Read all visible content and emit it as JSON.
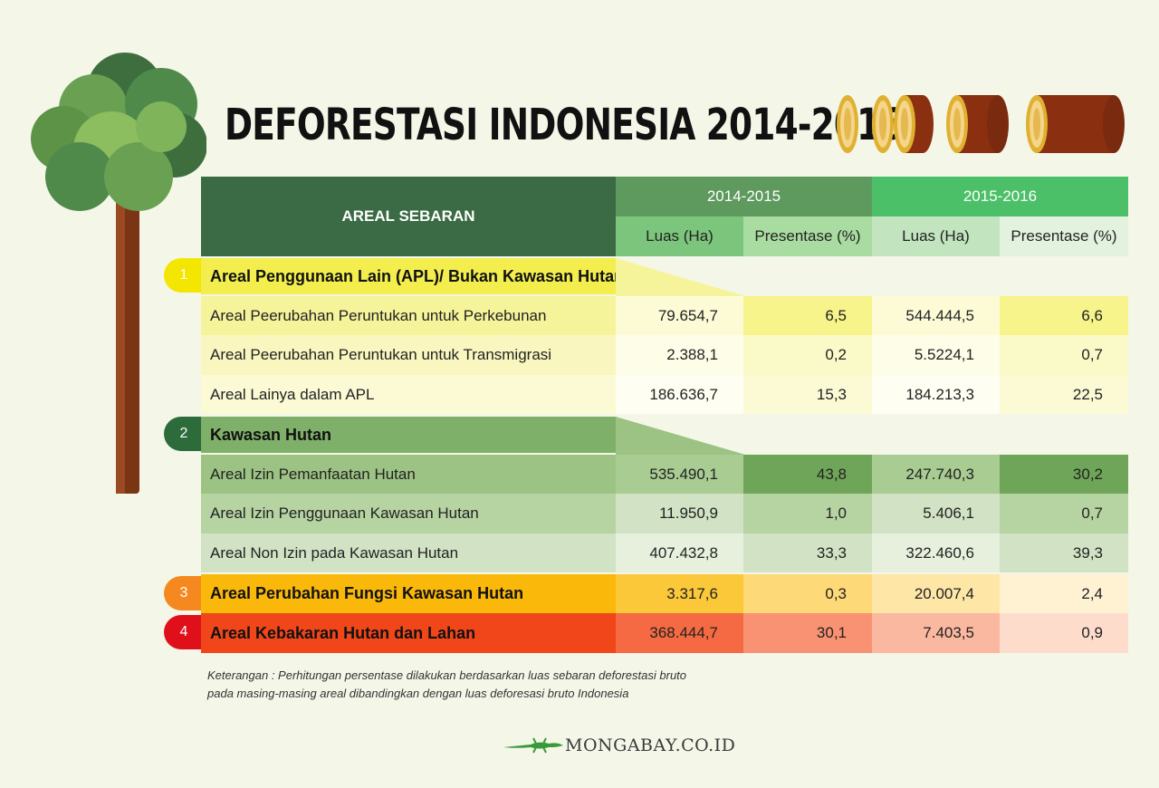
{
  "title": "DEFORESTASI INDONESIA 2014-2016",
  "colors": {
    "bg": "#f4f6e8",
    "dark_green": "#3a6b44",
    "green": "#7fb069",
    "yellow": "#f3e600",
    "orange": "#f5a623",
    "red": "#e8341a"
  },
  "icons": {
    "tree": "tree-icon",
    "logs": "log-icon",
    "logo": "lizard-icon"
  },
  "chart_data": {
    "type": "table",
    "header": {
      "category": "AREAL SEBARAN",
      "periods": [
        "2014-2015",
        "2015-2016"
      ],
      "subcolumns": [
        "Luas (Ha)",
        "Presentase (%)",
        "Luas (Ha)",
        "Presentase (%)"
      ]
    },
    "groups": [
      {
        "number": "1",
        "name": "Areal Penggunaan Lain (APL)/ Bukan Kawasan Hutan",
        "rows": [
          {
            "label": "Areal Peerubahan Peruntukan untuk Perkebunan",
            "values": [
              "79.654,7",
              "6,5",
              "544.444,5",
              "6,6"
            ]
          },
          {
            "label": "Areal Peerubahan Peruntukan untuk Transmigrasi",
            "values": [
              "2.388,1",
              "0,2",
              "5.5224,1",
              "0,7"
            ]
          },
          {
            "label": "Areal Lainya dalam APL",
            "values": [
              "186.636,7",
              "15,3",
              "184.213,3",
              "22,5"
            ]
          }
        ]
      },
      {
        "number": "2",
        "name": "Kawasan Hutan",
        "rows": [
          {
            "label": "Areal Izin Pemanfaatan Hutan",
            "values": [
              "535.490,1",
              "43,8",
              "247.740,3",
              "30,2"
            ]
          },
          {
            "label": "Areal Izin Penggunaan Kawasan Hutan",
            "values": [
              "11.950,9",
              "1,0",
              "5.406,1",
              "0,7"
            ]
          },
          {
            "label": "Areal Non Izin pada Kawasan Hutan",
            "values": [
              "407.432,8",
              "33,3",
              "322.460,6",
              "39,3"
            ]
          }
        ]
      },
      {
        "number": "3",
        "name": "Areal Perubahan Fungsi Kawasan Hutan",
        "values": [
          "3.317,6",
          "0,3",
          "20.007,4",
          "2,4"
        ]
      },
      {
        "number": "4",
        "name": "Areal Kebakaran Hutan dan Lahan",
        "values": [
          "368.444,7",
          "30,1",
          "7.403,5",
          "0,9"
        ]
      }
    ]
  },
  "note": {
    "line1": "Keterangan : Perhitungan persentase dilakukan berdasarkan luas sebaran deforestasi bruto",
    "line2": "pada masing-masing areal dibandingkan dengan luas deforesasi bruto Indonesia"
  },
  "logo": "MONGABAY.CO.ID"
}
